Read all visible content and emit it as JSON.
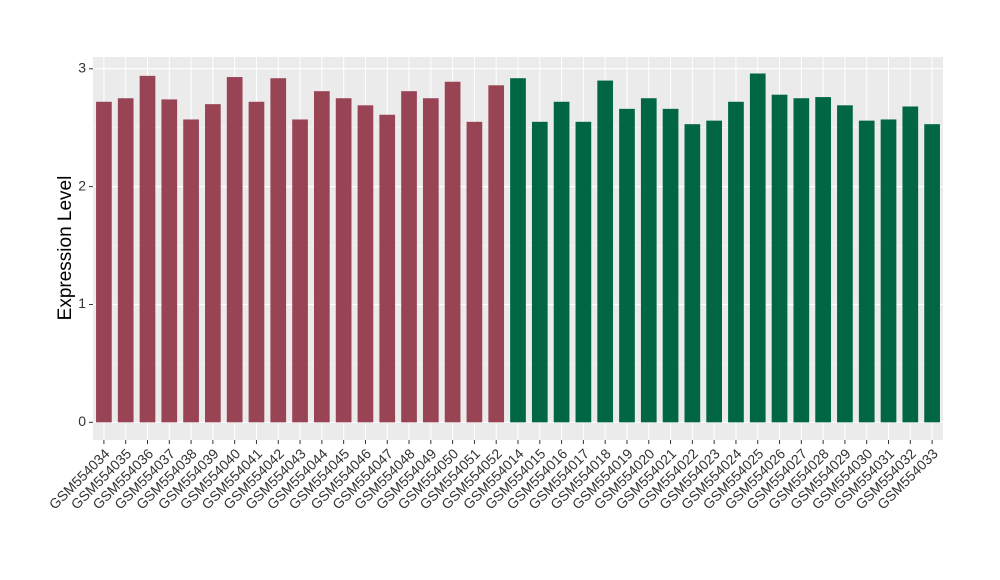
{
  "chart_data": {
    "type": "bar",
    "y_label": "Expression Level",
    "categories": [
      "GSM554034",
      "GSM554035",
      "GSM554036",
      "GSM554037",
      "GSM554038",
      "GSM554039",
      "GSM554040",
      "GSM554041",
      "GSM554042",
      "GSM554043",
      "GSM554044",
      "GSM554045",
      "GSM554046",
      "GSM554047",
      "GSM554048",
      "GSM554049",
      "GSM554050",
      "GSM554051",
      "GSM554052",
      "GSM554014",
      "GSM554015",
      "GSM554016",
      "GSM554017",
      "GSM554018",
      "GSM554019",
      "GSM554020",
      "GSM554021",
      "GSM554022",
      "GSM554023",
      "GSM554024",
      "GSM554025",
      "GSM554026",
      "GSM554027",
      "GSM554028",
      "GSM554029",
      "GSM554030",
      "GSM554031",
      "GSM554032",
      "GSM554033"
    ],
    "values": [
      2.72,
      2.75,
      2.94,
      2.74,
      2.57,
      2.7,
      2.93,
      2.72,
      2.92,
      2.57,
      2.81,
      2.75,
      2.69,
      2.61,
      2.81,
      2.75,
      2.89,
      2.55,
      2.86,
      2.92,
      2.55,
      2.72,
      2.55,
      2.9,
      2.66,
      2.75,
      2.66,
      2.53,
      2.56,
      2.72,
      2.96,
      2.78,
      2.75,
      2.76,
      2.69,
      2.56,
      2.57,
      2.68,
      2.53
    ],
    "colors": [
      "#994455",
      "#994455",
      "#994455",
      "#994455",
      "#994455",
      "#994455",
      "#994455",
      "#994455",
      "#994455",
      "#994455",
      "#994455",
      "#994455",
      "#994455",
      "#994455",
      "#994455",
      "#994455",
      "#994455",
      "#994455",
      "#994455",
      "#006644",
      "#006644",
      "#006644",
      "#006644",
      "#006644",
      "#006644",
      "#006644",
      "#006644",
      "#006644",
      "#006644",
      "#006644",
      "#006644",
      "#006644",
      "#006644",
      "#006644",
      "#006644",
      "#006644",
      "#006644",
      "#006644",
      "#006644"
    ],
    "ylim": [
      -0.15,
      3.1
    ],
    "yticks": [
      0,
      1,
      2,
      3
    ],
    "grid": true
  }
}
